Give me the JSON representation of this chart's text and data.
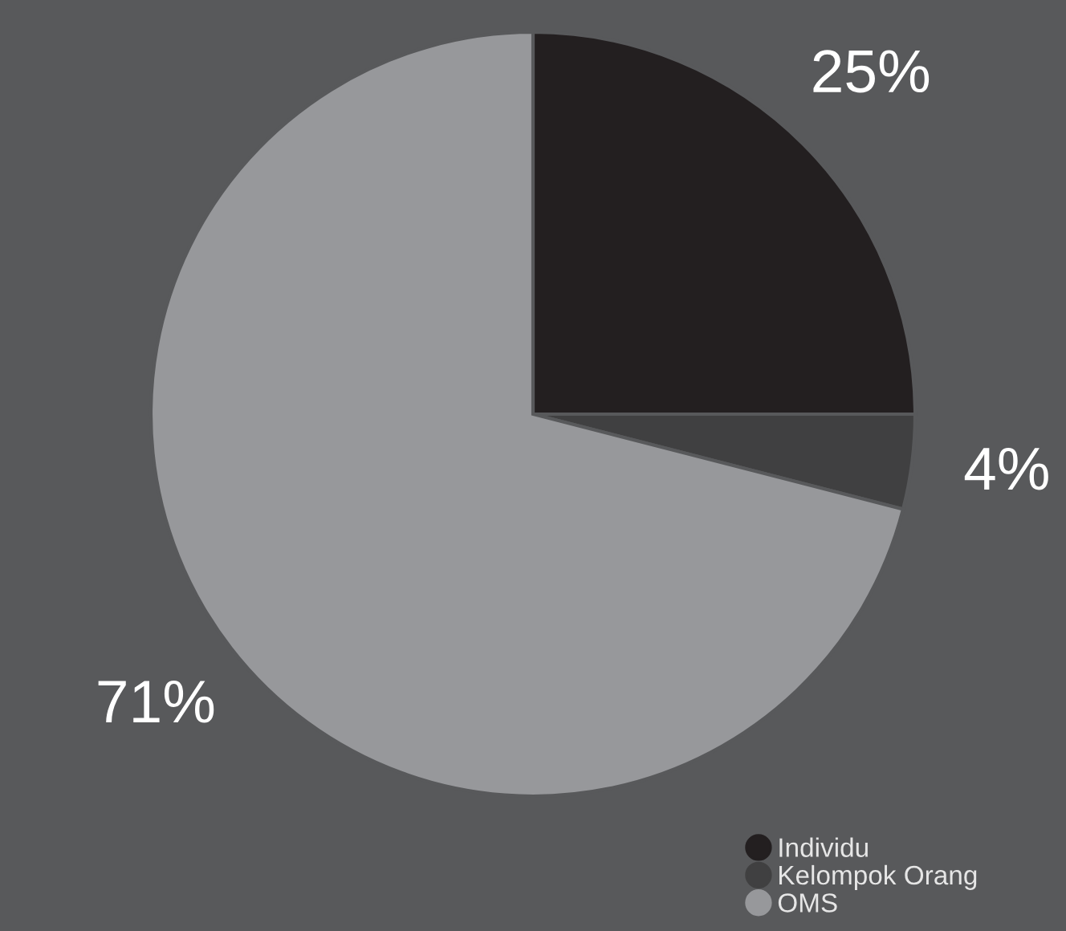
{
  "chart_data": {
    "type": "pie",
    "categories": [
      "Individu",
      "Kelompok Orang",
      "OMS"
    ],
    "values": [
      25,
      4,
      71
    ],
    "value_labels": [
      "25%",
      "4%",
      "71%"
    ],
    "colors": [
      "#231f20",
      "#404041",
      "#97989b"
    ],
    "legend": "bottom right"
  }
}
